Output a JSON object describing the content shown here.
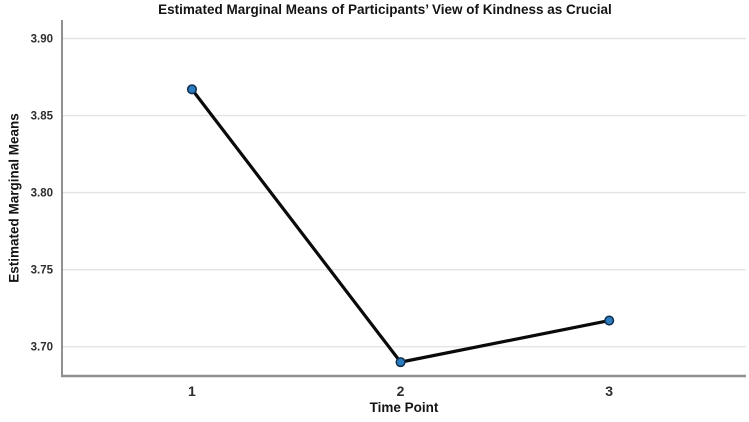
{
  "chart_data": {
    "type": "line",
    "title": "Estimated Marginal Means of Participants’ View of Kindness as Crucial",
    "xlabel": "Time Point",
    "ylabel": "Estimated Marginal Means",
    "categories": [
      "1",
      "2",
      "3"
    ],
    "series": [
      {
        "name": "Estimated Marginal Means",
        "values": [
          3.867,
          3.69,
          3.717
        ]
      }
    ],
    "yticks": [
      3.9,
      3.85,
      3.8,
      3.75,
      3.7
    ],
    "ytick_labels": [
      "3.90",
      "3.85",
      "3.80",
      "3.75",
      "3.70"
    ],
    "ylim": [
      3.681,
      3.912
    ],
    "grid": "horizontal",
    "legend": "none",
    "colors": {
      "line": "#0a0a0a",
      "marker_fill": "#2b7bbf",
      "marker_stroke": "#102f4e",
      "gridline": "#e4e4e4",
      "x_axis_line": "#8f8f8f",
      "y_axis_line": "#616161",
      "tick_text": "#2e2e2e"
    }
  }
}
